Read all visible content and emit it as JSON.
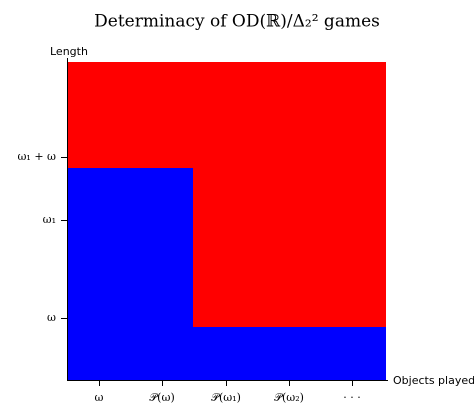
{
  "title": "Determinacy of OD(ℝ)/Δ₂² games",
  "y_axis": {
    "label": "Length",
    "ticks": [
      "ω",
      "ω₁",
      "ω₁ + ω"
    ]
  },
  "x_axis": {
    "label": "Objects played",
    "ticks": [
      "ω",
      "𝒫(ω)",
      "𝒫(ω₁)",
      "𝒫(ω₂)",
      "· · ·"
    ]
  }
}
